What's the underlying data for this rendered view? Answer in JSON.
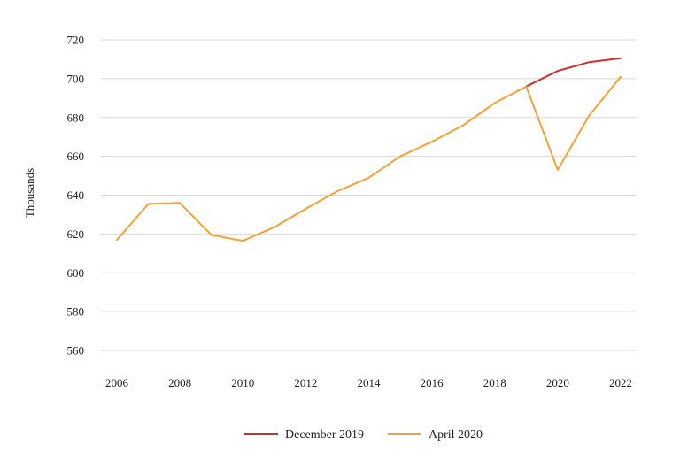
{
  "chart_data": {
    "type": "line",
    "title": "",
    "xlabel": "",
    "ylabel": "Thousands",
    "x": [
      2006,
      2007,
      2008,
      2009,
      2010,
      2011,
      2012,
      2013,
      2014,
      2015,
      2016,
      2017,
      2018,
      2019,
      2020,
      2021,
      2022
    ],
    "x_ticks": [
      "2006",
      "2008",
      "2010",
      "2012",
      "2014",
      "2016",
      "2018",
      "2020",
      "2022"
    ],
    "y_ticks": [
      "560",
      "580",
      "600",
      "620",
      "640",
      "660",
      "680",
      "700",
      "720"
    ],
    "ylim": [
      560,
      720
    ],
    "grid": true,
    "legend_position": "bottom",
    "series": [
      {
        "name": "December 2019",
        "color": "#d62b2b",
        "values": [
          null,
          null,
          null,
          null,
          null,
          null,
          null,
          null,
          null,
          null,
          null,
          null,
          null,
          696,
          704,
          708.5,
          710.5
        ]
      },
      {
        "name": "April 2020",
        "color": "#f7a033",
        "values": [
          617,
          635.5,
          636,
          619.5,
          616.5,
          623.5,
          633,
          642,
          649,
          660,
          667.5,
          676,
          687.5,
          696,
          653,
          681,
          701
        ]
      }
    ]
  }
}
